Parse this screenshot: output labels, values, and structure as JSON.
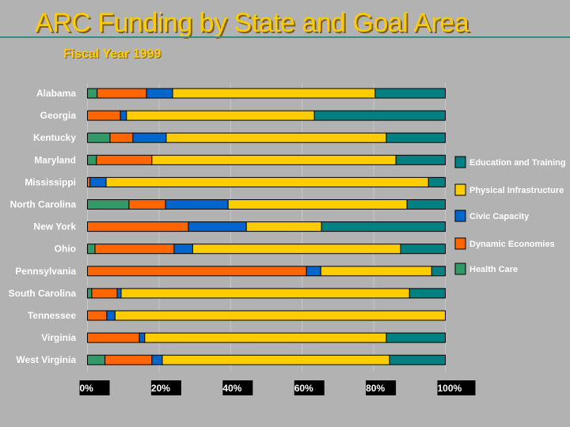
{
  "title": "ARC Funding by State and Goal Area",
  "subtitle": "Fiscal Year 1999",
  "chart_data": {
    "type": "bar",
    "orientation": "horizontal",
    "stacked": "percent",
    "title": "ARC Funding by State and Goal Area",
    "subtitle": "Fiscal Year 1999",
    "categories": [
      "Alabama",
      "Georgia",
      "Kentucky",
      "Maryland",
      "Mississippi",
      "North Carolina",
      "New York",
      "Ohio",
      "Pennsylvania",
      "South Carolina",
      "Tennessee",
      "Virginia",
      "West Virginia"
    ],
    "series": [
      {
        "name": "Health Care",
        "color": "#339966",
        "values": [
          2.7,
          0,
          6.3,
          2.5,
          0,
          11.6,
          0,
          2.1,
          0,
          1.2,
          0,
          0,
          4.9
        ]
      },
      {
        "name": "Dynamic Economies",
        "color": "#ff6600",
        "values": [
          13.8,
          9.2,
          6.4,
          15.5,
          0.7,
          10.2,
          28.2,
          22.1,
          61.2,
          7.1,
          5.4,
          14.5,
          13.1
        ]
      },
      {
        "name": "Civic Capacity",
        "color": "#0066cc",
        "values": [
          7.3,
          1.7,
          9.3,
          0,
          4.5,
          17.5,
          16.2,
          5.2,
          4.0,
          1.1,
          2.3,
          1.5,
          2.9
        ]
      },
      {
        "name": "Physical Infrastructure",
        "color": "#ffcc00",
        "values": [
          56.6,
          52.5,
          61.5,
          68.2,
          90.1,
          50.0,
          21.0,
          58.1,
          31.0,
          80.6,
          92.3,
          67.5,
          63.5
        ]
      },
      {
        "name": "Education and Training",
        "color": "#008080",
        "values": [
          19.6,
          36.6,
          16.5,
          13.8,
          4.7,
          10.7,
          34.6,
          12.5,
          3.8,
          10.0,
          0,
          16.5,
          15.6
        ]
      }
    ],
    "legend_order": [
      "Education and Training",
      "Physical Infrastructure",
      "Civic Capacity",
      "Dynamic Economies",
      "Health Care"
    ],
    "xlim": [
      0,
      100
    ],
    "xticks": [
      "0%",
      "20%",
      "40%",
      "60%",
      "80%",
      "100%"
    ],
    "grid": "vertical",
    "legend": "right"
  }
}
